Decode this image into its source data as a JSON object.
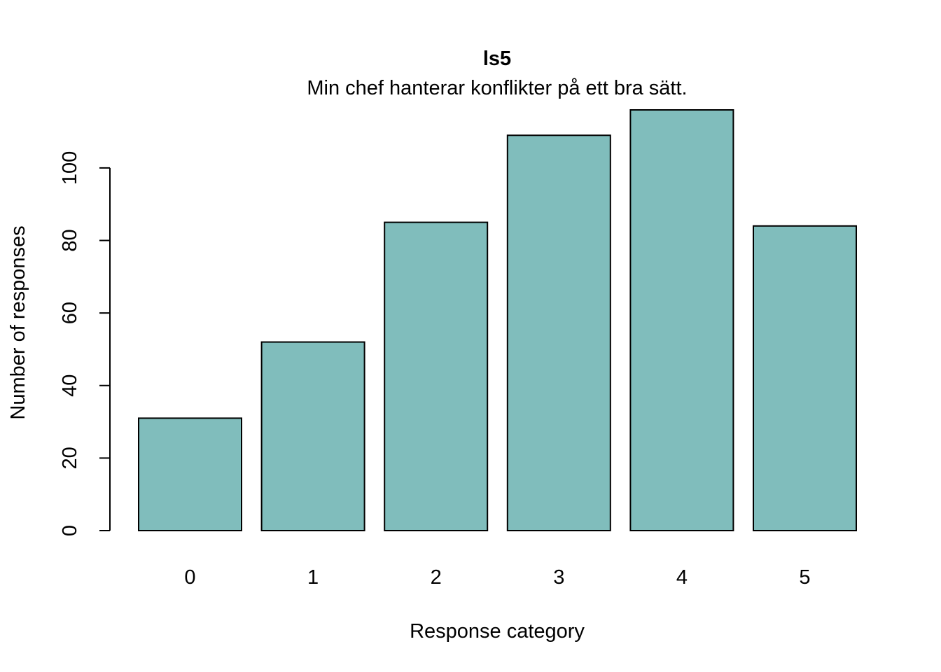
{
  "chart_data": {
    "type": "bar",
    "title": "ls5",
    "subtitle": "Min chef hanterar konflikter på ett bra sätt.",
    "xlabel": "Response category",
    "ylabel": "Number of responses",
    "categories": [
      "0",
      "1",
      "2",
      "3",
      "4",
      "5"
    ],
    "values": [
      31,
      52,
      85,
      109,
      116,
      84
    ],
    "ylim": [
      0,
      116
    ],
    "yticks": [
      0,
      20,
      40,
      60,
      80,
      100
    ],
    "grid": false,
    "bar_color": "#80bdbc",
    "bar_edge_color": "#000000"
  }
}
